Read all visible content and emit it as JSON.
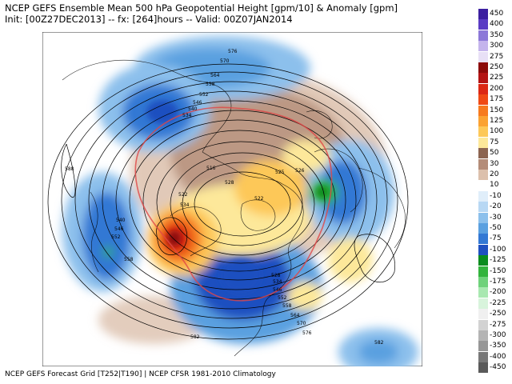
{
  "header": {
    "title": "NCEP GEFS Ensemble Mean 500 hPa Geopotential Height [gpm/10] & Anomaly [gpm]",
    "subtitle": "Init: [00Z27DEC2013] -- fx: [264]hours -- Valid: 00Z07JAN2014"
  },
  "footer": {
    "text": "NCEP GEFS Forecast Grid [T252|T190]  |  NCEP CFSR 1981-2010 Climatology"
  },
  "map": {
    "contour_labels": [
      "576",
      "570",
      "564",
      "558",
      "552",
      "546",
      "540",
      "534",
      "588",
      "516",
      "528",
      "522",
      "522",
      "534",
      "540",
      "546",
      "552",
      "558",
      "526",
      "525",
      "528",
      "534",
      "546",
      "552",
      "558",
      "564",
      "570",
      "576",
      "582",
      "582"
    ]
  },
  "colorbar": [
    {
      "label": "450",
      "color": "#3c1fa0"
    },
    {
      "label": "400",
      "color": "#5a3cc4"
    },
    {
      "label": "350",
      "color": "#8c78d8"
    },
    {
      "label": "300",
      "color": "#c4b4ec"
    },
    {
      "label": "275",
      "color": "#e8e0f6"
    },
    {
      "label": "250",
      "color": "#8c0a0a"
    },
    {
      "label": "225",
      "color": "#b41414"
    },
    {
      "label": "200",
      "color": "#dc2814"
    },
    {
      "label": "175",
      "color": "#f04a14"
    },
    {
      "label": "150",
      "color": "#f77a1e"
    },
    {
      "label": "125",
      "color": "#fba232"
    },
    {
      "label": "100",
      "color": "#fdc858"
    },
    {
      "label": "75",
      "color": "#fde89a"
    },
    {
      "label": "50",
      "color": "#8c6450"
    },
    {
      "label": "30",
      "color": "#b48c78"
    },
    {
      "label": "20",
      "color": "#dcc0ac"
    },
    {
      "label": "10",
      "color": "#ffffff"
    },
    {
      "label": "-10",
      "color": "#e0eefa"
    },
    {
      "label": "-20",
      "color": "#b8d8f4"
    },
    {
      "label": "-30",
      "color": "#8cc0ec"
    },
    {
      "label": "-50",
      "color": "#5aa0e0"
    },
    {
      "label": "-75",
      "color": "#3278d4"
    },
    {
      "label": "-100",
      "color": "#1e50c0"
    },
    {
      "label": "-125",
      "color": "#0a8c1e"
    },
    {
      "label": "-150",
      "color": "#32b43c"
    },
    {
      "label": "-175",
      "color": "#6ed27a"
    },
    {
      "label": "-200",
      "color": "#a8e8b0"
    },
    {
      "label": "-225",
      "color": "#d8f4dc"
    },
    {
      "label": "-250",
      "color": "#f0f0f0"
    },
    {
      "label": "-275",
      "color": "#d2d2d2"
    },
    {
      "label": "-300",
      "color": "#b4b4b4"
    },
    {
      "label": "-350",
      "color": "#969696"
    },
    {
      "label": "-400",
      "color": "#787878"
    },
    {
      "label": "-450",
      "color": "#5a5a5a"
    }
  ]
}
